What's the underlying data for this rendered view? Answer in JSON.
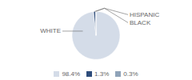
{
  "chart_data": {
    "type": "pie",
    "categories": [
      "WHITE",
      "HISPANIC",
      "BLACK"
    ],
    "values": [
      98.4,
      1.3,
      0.3
    ],
    "value_labels": [
      "98.4%",
      "1.3%",
      "0.3%"
    ],
    "colors": [
      "#d4dce8",
      "#2e4d7b",
      "#8fa3b8"
    ],
    "legend": "bottom"
  }
}
